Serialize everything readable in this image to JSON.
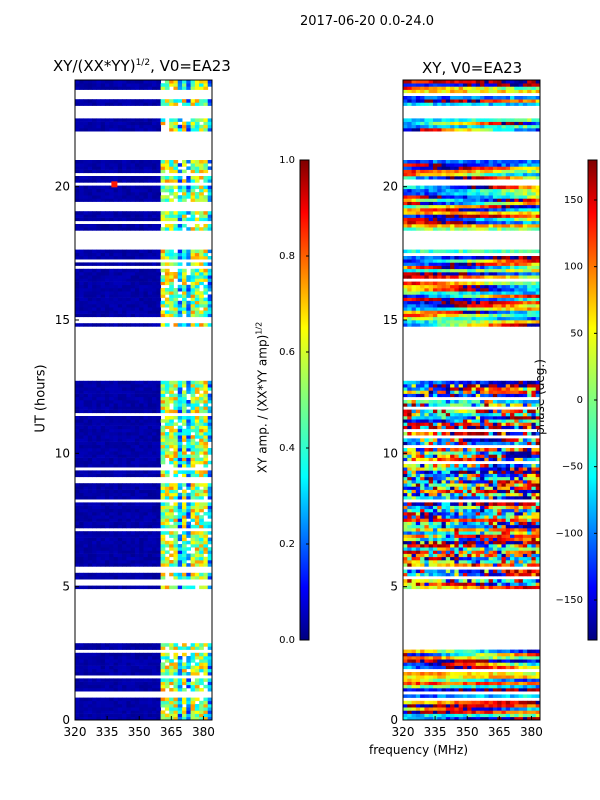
{
  "figure_title": "2017-06-20 0.0-24.0",
  "shared_xlabel": "frequency (MHz)",
  "chart_data": [
    {
      "type": "heatmap",
      "title": "XY/(XX*YY)^1/2, V0=EA23",
      "title_main": "XY/(XX*YY)",
      "title_sup": "1/2",
      "title_tail": ", V0=EA23",
      "xlabel": "frequency (MHz)",
      "ylabel": "UT (hours)",
      "xlim": [
        320,
        384
      ],
      "ylim": [
        0,
        24
      ],
      "xticks": [
        320,
        335,
        350,
        365,
        380
      ],
      "yticks": [
        0,
        5,
        10,
        15,
        20
      ],
      "valid_time_ranges": [
        [
          0,
          2.55
        ],
        [
          2.7,
          2.85
        ],
        [
          4.9,
          12.7
        ],
        [
          14.7,
          17.6
        ],
        [
          18.35,
          21.05
        ],
        [
          22.1,
          22.55
        ],
        [
          23.1,
          24
        ]
      ],
      "colorbar": {
        "label": "XY amp. / (XX*YY amp)^1/2",
        "label_main": "XY amp. / (XX*YY amp)",
        "label_sup": "1/2",
        "range": [
          0.0,
          1.0
        ],
        "ticks": [
          "0.0",
          "0.2",
          "0.4",
          "0.6",
          "0.8",
          "1.0"
        ],
        "tick_values": [
          0.0,
          0.2,
          0.4,
          0.6,
          0.8,
          1.0
        ],
        "colormap": "jet"
      }
    },
    {
      "type": "heatmap",
      "title": "XY, V0=EA23",
      "xlim": [
        320,
        384
      ],
      "ylim": [
        0,
        24
      ],
      "xticks": [
        320,
        335,
        350,
        365,
        380
      ],
      "yticks": [
        0,
        5,
        10,
        15,
        20
      ],
      "valid_time_ranges": [
        [
          0,
          2.6
        ],
        [
          4.9,
          12.7
        ],
        [
          14.7,
          17.6
        ],
        [
          18.35,
          21.05
        ],
        [
          22.1,
          22.55
        ],
        [
          23.1,
          24
        ]
      ],
      "colorbar": {
        "label": "phase (deg.)",
        "range": [
          -180,
          180
        ],
        "ticks": [
          "−150",
          "−100",
          "−50",
          "0",
          "50",
          "100",
          "150"
        ],
        "tick_values": [
          -150,
          -100,
          -50,
          0,
          50,
          100,
          150
        ],
        "colormap": "jet"
      }
    }
  ]
}
